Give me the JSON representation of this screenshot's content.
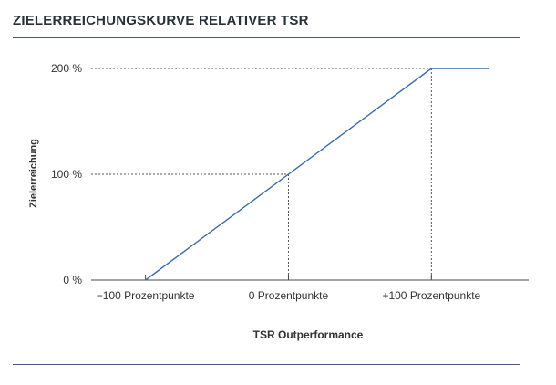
{
  "header": {
    "title": "ZIELERREICHUNGSKURVE RELATIVER TSR"
  },
  "chart_data": {
    "type": "line",
    "title": "ZIELERREICHUNGSKURVE RELATIVER TSR",
    "xlabel": "TSR Outperformance",
    "ylabel": "Zielerreichung",
    "x_ticks": [
      {
        "value": -100,
        "label": "−100 Prozentpunkte"
      },
      {
        "value": 0,
        "label": "0 Prozentpunkte"
      },
      {
        "value": 100,
        "label": "+100 Prozentpunkte"
      }
    ],
    "y_ticks": [
      {
        "value": 0,
        "label": "0 %"
      },
      {
        "value": 100,
        "label": "100 %"
      },
      {
        "value": 200,
        "label": "200 %"
      }
    ],
    "xlim": [
      -138,
      168
    ],
    "ylim": [
      0,
      200
    ],
    "series": [
      {
        "x": [
          -100,
          -100,
          100,
          140
        ],
        "y": [
          0,
          0,
          200,
          200
        ]
      }
    ],
    "x_raw_start": -100,
    "reference_lines": [
      {
        "x": 0,
        "y": 100
      },
      {
        "x": 100,
        "y": 200
      }
    ],
    "line_color": "#3d6ea8",
    "grid": false
  }
}
